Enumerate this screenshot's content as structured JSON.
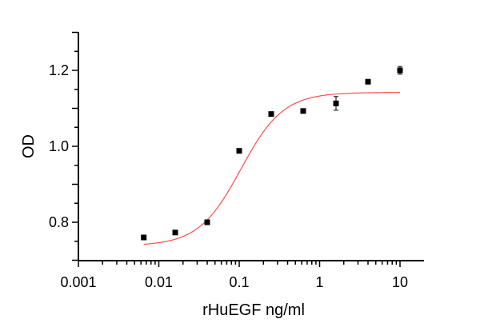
{
  "chart_data": {
    "type": "scatter",
    "xlabel": "rHuEGF ng/ml",
    "ylabel": "OD",
    "xscale": "log",
    "xlim": [
      0.001,
      20
    ],
    "ylim": [
      0.7,
      1.3
    ],
    "grid": false,
    "xticks": [
      {
        "value": 0.001,
        "label": "0.001"
      },
      {
        "value": 0.01,
        "label": "0.01"
      },
      {
        "value": 0.1,
        "label": "0.1"
      },
      {
        "value": 1,
        "label": "1"
      },
      {
        "value": 10,
        "label": "10"
      }
    ],
    "yticks": [
      {
        "value": 0.8,
        "label": "0.8"
      },
      {
        "value": 1.0,
        "label": "1.0"
      },
      {
        "value": 1.2,
        "label": "1.2"
      }
    ],
    "points": {
      "x": [
        0.0065,
        0.016,
        0.04,
        0.1,
        0.25,
        0.625,
        1.6,
        4,
        10
      ],
      "y": [
        0.76,
        0.773,
        0.8,
        0.988,
        1.085,
        1.093,
        1.113,
        1.17,
        1.2
      ],
      "yerr": [
        0.004,
        0.004,
        0.004,
        0.004,
        0.004,
        0.004,
        0.018,
        0.004,
        0.01
      ],
      "color": "#000000"
    },
    "fit_curve": {
      "model": "4PL",
      "bottom": 0.738,
      "top": 1.142,
      "ec50": 0.105,
      "hill": 1.65,
      "x_range": [
        0.0065,
        10
      ],
      "color": "#ff4d4d"
    }
  }
}
